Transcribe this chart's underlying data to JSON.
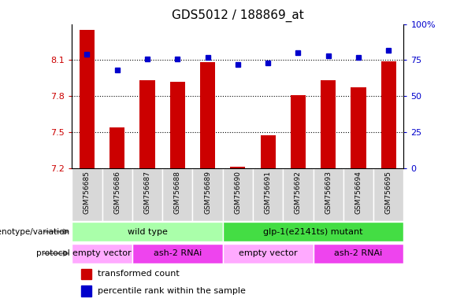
{
  "title": "GDS5012 / 188869_at",
  "samples": [
    "GSM756685",
    "GSM756686",
    "GSM756687",
    "GSM756688",
    "GSM756689",
    "GSM756690",
    "GSM756691",
    "GSM756692",
    "GSM756693",
    "GSM756694",
    "GSM756695"
  ],
  "red_values": [
    8.35,
    7.54,
    7.93,
    7.92,
    8.08,
    7.21,
    7.47,
    7.81,
    7.93,
    7.87,
    8.09
  ],
  "blue_values": [
    79,
    68,
    76,
    76,
    77,
    72,
    73,
    80,
    78,
    77,
    82
  ],
  "ylim_left": [
    7.2,
    8.4
  ],
  "ylim_right": [
    0,
    100
  ],
  "yticks_left": [
    7.2,
    7.5,
    7.8,
    8.1
  ],
  "yticks_right": [
    0,
    25,
    50,
    75,
    100
  ],
  "ytick_labels_right": [
    "0",
    "25",
    "50",
    "75",
    "100%"
  ],
  "bar_color": "#cc0000",
  "dot_color": "#0000cc",
  "genotype_labels": [
    "wild type",
    "glp-1(e2141ts) mutant"
  ],
  "genotype_colors": [
    "#aaffaa",
    "#44dd44"
  ],
  "protocol_labels": [
    "empty vector",
    "ash-2 RNAi",
    "empty vector",
    "ash-2 RNAi"
  ],
  "protocol_colors": [
    "#ffaaff",
    "#ee44ee",
    "#ffaaff",
    "#ee44ee"
  ],
  "legend_items": [
    "transformed count",
    "percentile rank within the sample"
  ],
  "legend_colors": [
    "#cc0000",
    "#0000cc"
  ],
  "title_fontsize": 11,
  "tick_fontsize": 8,
  "bar_width": 0.5,
  "xlim": [
    -0.5,
    10.5
  ]
}
